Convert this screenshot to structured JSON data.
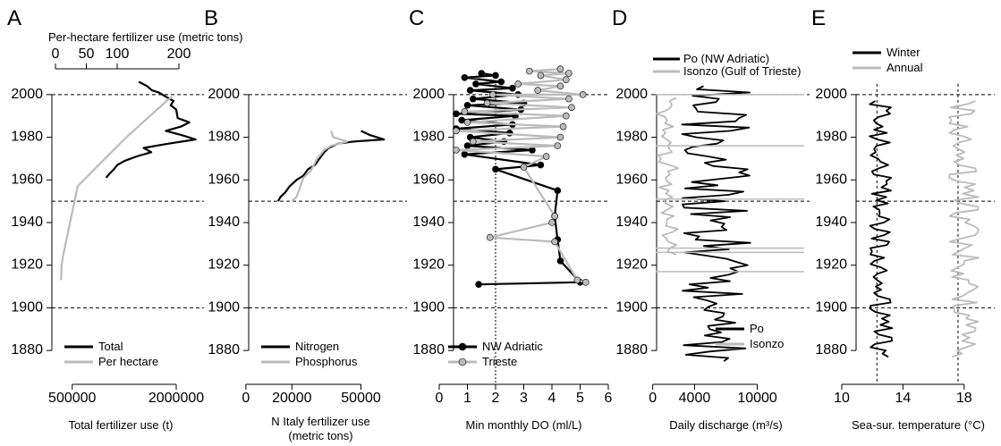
{
  "chart_data": [
    {
      "type": "line",
      "panel_label": "A",
      "xlabel": "Total fertilizer use (t)",
      "top_xlabel": "Per-hectare fertilizer use (metric tons)",
      "ylim": [
        1870,
        2010
      ],
      "xlim": [
        0,
        2400000
      ],
      "x_ticks": [
        500000,
        2000000
      ],
      "x_tick_labels": [
        "500000",
        "2000000"
      ],
      "top_xlim": [
        0,
        200
      ],
      "top_x_ticks": [
        0,
        50,
        100,
        200
      ],
      "y_ticks": [
        1880,
        1900,
        1920,
        1940,
        1960,
        1980,
        2000
      ],
      "reference_years": [
        1900,
        1950,
        2000
      ],
      "legend": {
        "position": "bottom",
        "entries": [
          "Total",
          "Per hectare"
        ]
      },
      "series": [
        {
          "name": "Total",
          "color": "#000000",
          "axis": "bottom",
          "points": [
            [
              990000,
              1961
            ],
            [
              1040000,
              1963
            ],
            [
              1100000,
              1965
            ],
            [
              1150000,
              1967
            ],
            [
              1260000,
              1969
            ],
            [
              1430000,
              1971
            ],
            [
              1640000,
              1973
            ],
            [
              1530000,
              1975
            ],
            [
              1890000,
              1977
            ],
            [
              2280000,
              1979
            ],
            [
              2080000,
              1981
            ],
            [
              1850000,
              1983
            ],
            [
              2070000,
              1985
            ],
            [
              2190000,
              1987
            ],
            [
              2020000,
              1989
            ],
            [
              2010000,
              1991
            ],
            [
              2000000,
              1993
            ],
            [
              1920000,
              1995
            ],
            [
              1960000,
              1997
            ],
            [
              1850000,
              1999
            ],
            [
              1750000,
              2001
            ],
            [
              1650000,
              2002
            ],
            [
              1580000,
              2004
            ],
            [
              1460000,
              2006
            ]
          ]
        },
        {
          "name": "Per hectare",
          "color": "#bbbbbb",
          "axis": "top",
          "points": [
            [
              9,
              1913
            ],
            [
              10,
              1920
            ],
            [
              12,
              1924
            ],
            [
              36,
              1957
            ],
            [
              70,
              1967
            ],
            [
              115,
              1980
            ],
            [
              180,
              1997
            ],
            [
              189,
              1999
            ]
          ]
        }
      ]
    },
    {
      "type": "line",
      "panel_label": "B",
      "xlabel": "N Italy fertilizer use",
      "xlabel2": "(metric tons)",
      "xlim": [
        -5000,
        70000
      ],
      "x_ticks": [
        0,
        20000,
        50000
      ],
      "x_tick_labels": [
        "0",
        "20000",
        "50000"
      ],
      "y_ticks": [
        1880,
        1900,
        1920,
        1940,
        1960,
        1980,
        2000
      ],
      "reference_years": [
        1900,
        1950,
        2000
      ],
      "legend": {
        "position": "bottom",
        "entries": [
          "Nitrogen",
          "Phosphorus"
        ]
      },
      "series": [
        {
          "name": "Nitrogen",
          "color": "#000000",
          "points": [
            [
              14000,
              1950
            ],
            [
              15000,
              1952
            ],
            [
              17000,
              1954
            ],
            [
              19000,
              1957
            ],
            [
              22000,
              1960
            ],
            [
              25000,
              1962
            ],
            [
              27000,
              1965
            ],
            [
              30000,
              1967
            ],
            [
              32000,
              1970
            ],
            [
              34000,
              1973
            ],
            [
              36000,
              1975
            ],
            [
              40000,
              1977
            ],
            [
              47000,
              1978
            ],
            [
              60000,
              1979
            ],
            [
              54000,
              1981
            ],
            [
              50000,
              1983
            ]
          ]
        },
        {
          "name": "Phosphorus",
          "color": "#bbbbbb",
          "points": [
            [
              20000,
              1950
            ],
            [
              22000,
              1952
            ],
            [
              23000,
              1955
            ],
            [
              24000,
              1958
            ],
            [
              25000,
              1961
            ],
            [
              28000,
              1964
            ],
            [
              29000,
              1966
            ],
            [
              31000,
              1970
            ],
            [
              34000,
              1974
            ],
            [
              37000,
              1976
            ],
            [
              44000,
              1978
            ],
            [
              38000,
              1980
            ],
            [
              37000,
              1983
            ]
          ]
        }
      ]
    },
    {
      "type": "line",
      "panel_label": "C",
      "xlabel": "Min monthly DO (ml/L)",
      "xlim": [
        0,
        6
      ],
      "x_ticks": [
        0,
        1,
        2,
        3,
        4,
        5,
        6
      ],
      "vline": 2,
      "y_ticks": [
        1880,
        1900,
        1920,
        1940,
        1960,
        1980,
        2000
      ],
      "reference_years": [
        1900,
        1950,
        2000
      ],
      "legend": {
        "position": "bottom-left",
        "entries": [
          "NW Adriatic",
          "Trieste"
        ]
      },
      "series": [
        {
          "name": "NW Adriatic",
          "color": "#000000",
          "marker": "circle",
          "points": [
            [
              1.4,
              1911
            ],
            [
              5.0,
              1912
            ],
            [
              4.3,
              1922
            ],
            [
              4.2,
              1932
            ],
            [
              4.1,
              1943
            ],
            [
              4.2,
              1955
            ],
            [
              2.0,
              1965
            ],
            [
              3.6,
              1967
            ],
            [
              0.9,
              1972
            ],
            [
              3.3,
              1974
            ],
            [
              1.0,
              1976
            ],
            [
              2.3,
              1978
            ],
            [
              1.1,
              1980
            ],
            [
              2.5,
              1982
            ],
            [
              0.6,
              1984
            ],
            [
              2.6,
              1986
            ],
            [
              0.8,
              1988
            ],
            [
              2.7,
              1990
            ],
            [
              0.6,
              1991
            ],
            [
              2.9,
              1993
            ],
            [
              1.0,
              1995
            ],
            [
              3.0,
              1996
            ],
            [
              1.2,
              1998
            ],
            [
              2.8,
              2000
            ],
            [
              1.1,
              2002
            ],
            [
              2.6,
              2003
            ],
            [
              1.3,
              2005
            ],
            [
              2.2,
              2006
            ],
            [
              0.9,
              2008
            ],
            [
              2.0,
              2009
            ],
            [
              1.5,
              2010
            ]
          ]
        },
        {
          "name": "Trieste",
          "color": "#bbbbbb",
          "marker": "circle",
          "points": [
            [
              5.2,
              1912
            ],
            [
              4.9,
              1913
            ],
            [
              4.1,
              1931
            ],
            [
              1.8,
              1933
            ],
            [
              4.0,
              1940
            ],
            [
              4.1,
              1943
            ],
            [
              3.0,
              1966
            ],
            [
              3.8,
              1971
            ],
            [
              0.6,
              1974
            ],
            [
              4.2,
              1976
            ],
            [
              1.2,
              1978
            ],
            [
              4.3,
              1980
            ],
            [
              0.6,
              1983
            ],
            [
              4.4,
              1985
            ],
            [
              1.0,
              1987
            ],
            [
              4.5,
              1990
            ],
            [
              0.9,
              1992
            ],
            [
              4.7,
              1994
            ],
            [
              1.7,
              1996
            ],
            [
              4.6,
              1998
            ],
            [
              1.9,
              2000
            ],
            [
              5.1,
              2000
            ],
            [
              3.5,
              2002
            ],
            [
              4.3,
              2004
            ],
            [
              2.8,
              2005
            ],
            [
              4.5,
              2007
            ],
            [
              3.6,
              2009
            ],
            [
              4.6,
              2010
            ],
            [
              3.2,
              2011
            ],
            [
              4.3,
              2012
            ]
          ]
        }
      ]
    },
    {
      "type": "line",
      "panel_label": "D",
      "xlabel": "Daily discharge (m³/s)",
      "xlim": [
        -1000,
        15000
      ],
      "x_ticks": [
        0,
        4000,
        10000
      ],
      "x_tick_labels": [
        "0",
        "4000",
        "10000"
      ],
      "y_ticks": [
        1880,
        1900,
        1920,
        1940,
        1960,
        1980,
        2000
      ],
      "reference_years": [
        1900,
        1950,
        2000
      ],
      "legend_top": {
        "entries": [
          "Po (NW Adriatic)",
          "Isonzo (Gulf of Trieste)"
        ]
      },
      "legend": {
        "position": "bottom-right",
        "entries": [
          "Po",
          "Isonzo"
        ]
      },
      "series": [
        {
          "name": "Po",
          "color": "#000000",
          "style": "wiggly",
          "x_range": [
            2800,
            9500
          ],
          "y_range": [
            1875,
            2005
          ]
        },
        {
          "name": "Isonzo",
          "color": "#bbbbbb",
          "style": "wiggly",
          "x_range": [
            300,
            2500
          ],
          "y_range": [
            1925,
            1999
          ],
          "spikes": [
            [
              1917,
              14500
            ],
            [
              1926,
              14500
            ],
            [
              1928,
              14500
            ],
            [
              1951,
              14500
            ],
            [
              1976,
              14500
            ],
            [
              2000,
              14500
            ]
          ]
        }
      ]
    },
    {
      "type": "line",
      "panel_label": "E",
      "xlabel": "Sea-sur. temperature (°C)",
      "xlim": [
        10,
        20
      ],
      "x_ticks": [
        10,
        14,
        18
      ],
      "y_ticks": [
        1880,
        1900,
        1920,
        1940,
        1960,
        1980,
        2000
      ],
      "reference_years": [
        1900,
        1950,
        2000
      ],
      "vlines": [
        12.3,
        17.6
      ],
      "legend": {
        "position": "top",
        "entries": [
          "Winter",
          "Annual"
        ]
      },
      "series": [
        {
          "name": "Winter",
          "color": "#000000",
          "style": "wiggly",
          "x_range": [
            11.8,
            13.3
          ],
          "y_range": [
            1877,
            1998
          ]
        },
        {
          "name": "Annual",
          "color": "#bbbbbb",
          "style": "wiggly",
          "x_range": [
            17.0,
            19.0
          ],
          "y_range": [
            1877,
            1998
          ]
        }
      ]
    }
  ]
}
